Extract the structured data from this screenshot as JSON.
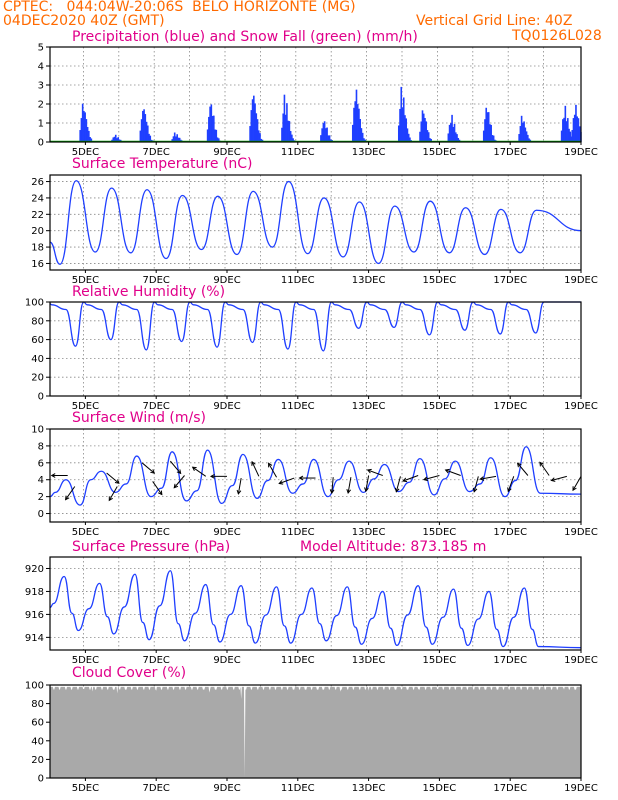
{
  "header": {
    "line1_left": "CPTEC:   044:04W-20:06S  BELO HORIZONTE (MG)",
    "line2_left": "04DEC2020 40Z (GMT)",
    "line2_right": "Vertical Grid Line: 40Z",
    "line3_right": "TQ0126L028"
  },
  "colors": {
    "header": "#ff6a00",
    "title": "#e0008a",
    "line": "#1f3fff",
    "cloud": "#a9a9a9",
    "snow": "#00a000",
    "grid": "#888888"
  },
  "x_axis": {
    "start_day": 4,
    "end_day": 19,
    "labels": [
      {
        "day": 5,
        "label": "5DEC"
      },
      {
        "day": 7,
        "label": "7DEC"
      },
      {
        "day": 9,
        "label": "9DEC"
      },
      {
        "day": 11,
        "label": "11DEC"
      },
      {
        "day": 13,
        "label": "13DEC"
      },
      {
        "day": 15,
        "label": "15DEC"
      },
      {
        "day": 17,
        "label": "17DEC"
      },
      {
        "day": 19,
        "label": "19DEC"
      }
    ]
  },
  "chart_data": [
    {
      "id": "precip",
      "type": "bar",
      "title": "Precipitation (blue) and Snow Fall (green) (mm/h)",
      "ylim": [
        0,
        5
      ],
      "yticks": [
        0,
        1,
        2,
        3,
        4,
        5
      ],
      "grid": true,
      "series": [
        {
          "name": "Precipitation",
          "color": "#1f3fff",
          "events": [
            [
              4.9,
              2.1
            ],
            [
              5.8,
              0.4
            ],
            [
              6.6,
              2.0
            ],
            [
              7.5,
              0.5
            ],
            [
              8.5,
              2.2
            ],
            [
              9.7,
              2.8
            ],
            [
              10.6,
              2.5
            ],
            [
              11.7,
              1.2
            ],
            [
              12.6,
              3.0
            ],
            [
              13.9,
              2.9
            ],
            [
              14.5,
              1.8
            ],
            [
              15.3,
              1.5
            ],
            [
              16.3,
              2.0
            ],
            [
              17.3,
              1.4
            ],
            [
              18.5,
              2.0
            ],
            [
              18.8,
              2.1
            ]
          ]
        },
        {
          "name": "Snow Fall",
          "color": "#00a000",
          "value": 0
        }
      ]
    },
    {
      "id": "temp",
      "type": "line",
      "title": "Surface Temperature (nC)",
      "ylim": [
        15.2,
        26.8
      ],
      "yticks": [
        16,
        18,
        20,
        22,
        24,
        26
      ],
      "grid": true,
      "daily_max": [
        26.1,
        25.2,
        25.0,
        24.3,
        24.2,
        24.8,
        26.0,
        24.0,
        23.5,
        23.0,
        23.6,
        22.8,
        22.6,
        22.5
      ],
      "daily_min": [
        15.9,
        17.4,
        17.3,
        16.6,
        17.7,
        17.1,
        18.0,
        17.2,
        16.8,
        16.0,
        17.4,
        17.3,
        17.1,
        17.3
      ],
      "start_value": 18.6,
      "end_value": 20.0
    },
    {
      "id": "rh",
      "type": "line",
      "title": "Relative Humidity (%)",
      "ylim": [
        0,
        100
      ],
      "yticks": [
        0,
        20,
        40,
        60,
        80,
        100
      ],
      "grid": true,
      "daily_min": [
        53,
        60,
        49,
        58,
        52,
        57,
        50,
        48,
        72,
        73,
        65,
        70,
        66,
        67
      ],
      "start_value": 98,
      "end_value": 100
    },
    {
      "id": "wind",
      "type": "line",
      "title": "Surface Wind (m/s)",
      "ylim": [
        -1,
        10
      ],
      "yticks": [
        0,
        2,
        4,
        6,
        8,
        10
      ],
      "grid": true,
      "daily_peak": [
        4.0,
        5.0,
        6.8,
        7.3,
        7.5,
        7.0,
        6.4,
        6.4,
        6.2,
        5.8,
        6.5,
        6.2,
        6.6,
        7.9
      ],
      "daily_low": [
        1.0,
        2.5,
        2.0,
        1.5,
        1.2,
        1.8,
        2.4,
        2.0,
        2.5,
        2.6,
        2.2,
        2.6,
        2.0,
        2.4
      ],
      "start_value": 2.0,
      "end_value": 2.3,
      "arrows": [
        [
          4.5,
          4.5,
          180
        ],
        [
          4.7,
          3.2,
          125
        ],
        [
          5.6,
          4.8,
          40
        ],
        [
          5.9,
          3.2,
          120
        ],
        [
          6.6,
          6.0,
          40
        ],
        [
          6.9,
          3.8,
          55
        ],
        [
          7.4,
          6.2,
          50
        ],
        [
          7.8,
          4.5,
          130
        ],
        [
          8.4,
          4.4,
          215
        ],
        [
          9.0,
          4.4,
          180
        ],
        [
          9.4,
          4.2,
          100
        ],
        [
          9.9,
          4.4,
          245
        ],
        [
          10.4,
          4.3,
          240
        ],
        [
          10.9,
          4.2,
          160
        ],
        [
          11.5,
          4.2,
          180
        ],
        [
          12.0,
          4.3,
          95
        ],
        [
          12.5,
          4.3,
          100
        ],
        [
          13.0,
          4.5,
          100
        ],
        [
          13.4,
          4.5,
          200
        ],
        [
          13.9,
          4.4,
          105
        ],
        [
          14.4,
          4.5,
          160
        ],
        [
          15.0,
          4.5,
          165
        ],
        [
          15.6,
          4.5,
          200
        ],
        [
          16.1,
          4.4,
          105
        ],
        [
          16.6,
          4.4,
          170
        ],
        [
          17.1,
          4.4,
          110
        ],
        [
          17.5,
          4.5,
          230
        ],
        [
          18.1,
          4.5,
          235
        ],
        [
          18.6,
          4.4,
          165
        ],
        [
          19.0,
          4.4,
          120
        ]
      ]
    },
    {
      "id": "pres",
      "type": "line",
      "title": "Surface Pressure (hPa)",
      "annotation": "Model Altitude: 873.185 m",
      "ylim": [
        912.9,
        921.0
      ],
      "yticks": [
        914,
        916,
        918,
        920
      ],
      "grid": true,
      "daily_max": [
        919.3,
        918.7,
        919.5,
        919.8,
        918.6,
        918.5,
        918.4,
        918.3,
        918.4,
        918.0,
        918.5,
        918.2,
        918.0,
        918.3
      ],
      "daily_min": [
        914.6,
        914.3,
        913.8,
        913.7,
        913.6,
        913.5,
        913.5,
        913.7,
        913.4,
        913.3,
        913.4,
        913.3,
        913.2,
        913.2
      ],
      "start_value": 916.6,
      "end_value": 913.1
    },
    {
      "id": "cloud",
      "type": "area",
      "title": "Cloud Cover (%)",
      "ylim": [
        0,
        100
      ],
      "yticks": [
        0,
        20,
        40,
        60,
        80,
        100
      ],
      "grid": true,
      "baseline_value": 98,
      "dips": [
        [
          5.2,
          93
        ],
        [
          5.9,
          91
        ],
        [
          7.0,
          94
        ],
        [
          8.5,
          92
        ],
        [
          9.4,
          85
        ],
        [
          9.5,
          0
        ],
        [
          11.7,
          95
        ],
        [
          12.2,
          93
        ],
        [
          13.0,
          94
        ],
        [
          14.4,
          96
        ],
        [
          16.3,
          95
        ],
        [
          18.5,
          97
        ]
      ]
    }
  ]
}
